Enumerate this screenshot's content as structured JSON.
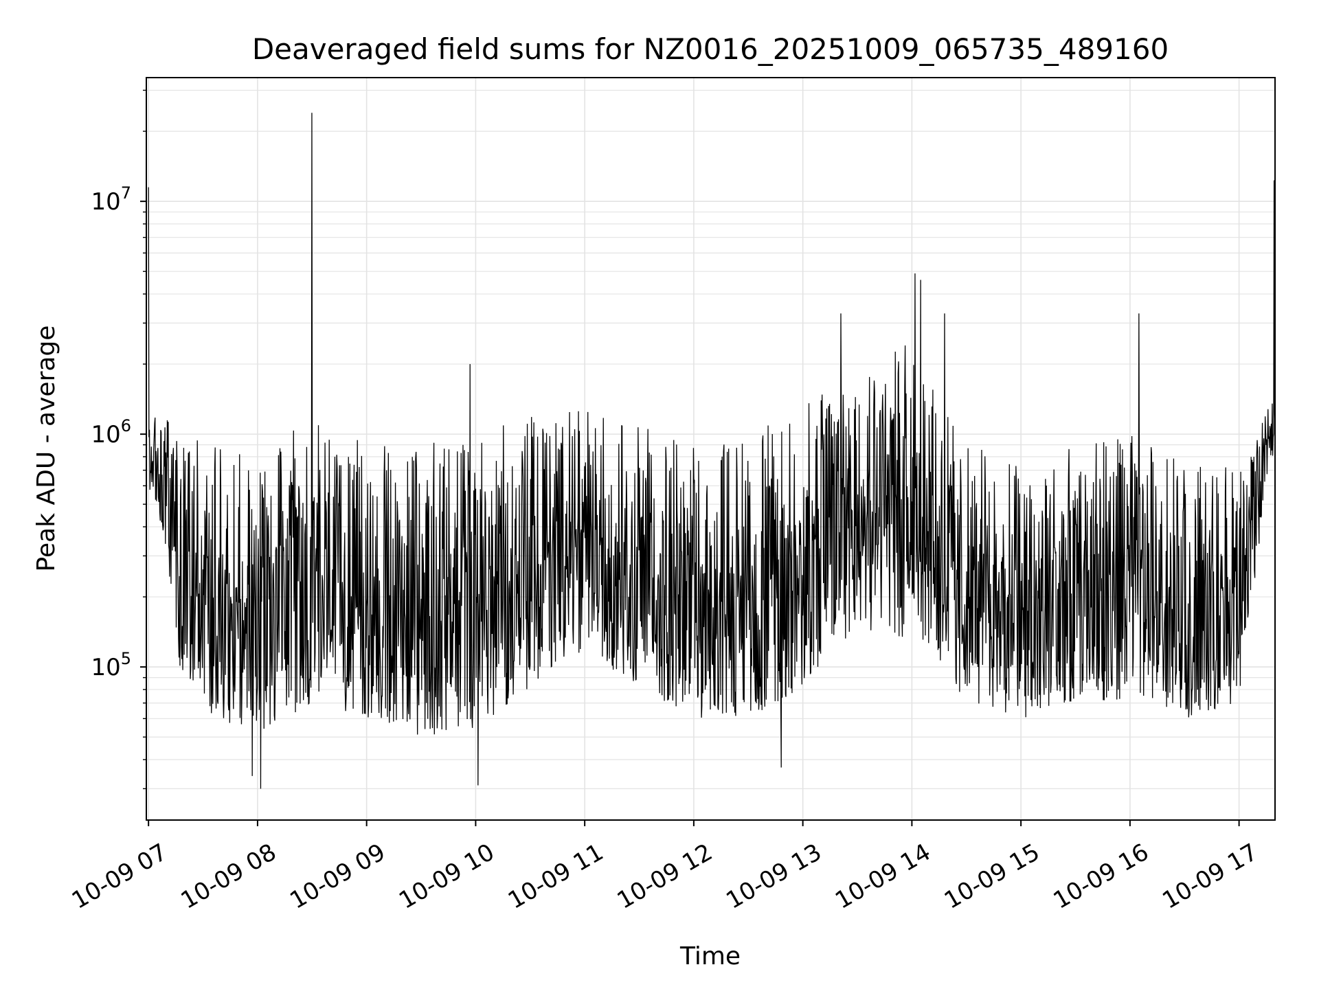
{
  "chart_data": {
    "type": "line",
    "title": "Deaveraged field sums for NZ0016_20251009_065735_489160",
    "xlabel": "Time",
    "ylabel": "Peak ADU - average",
    "yscale": "log",
    "ylim": [
      22000,
      34000000
    ],
    "xlim_hours": [
      6.98,
      17.33
    ],
    "grid": true,
    "x_tick_hours": [
      7,
      8,
      9,
      10,
      11,
      12,
      13,
      14,
      15,
      16,
      17
    ],
    "x_tick_labels": [
      "10-09 07",
      "10-09 08",
      "10-09 09",
      "10-09 10",
      "10-09 11",
      "10-09 12",
      "10-09 13",
      "10-09 14",
      "10-09 15",
      "10-09 16",
      "10-09 17"
    ],
    "y_major_ticks": [
      {
        "value": 100000,
        "base": "10",
        "exp": "5"
      },
      {
        "value": 1000000,
        "base": "10",
        "exp": "6"
      },
      {
        "value": 10000000,
        "base": "10",
        "exp": "7"
      }
    ],
    "series": [
      {
        "name": "field sums",
        "color": "#000000",
        "description": "dense noisy trace sampled ~every 15 s; envelope values below",
        "envelope": [
          {
            "hour": 7.0,
            "low": 600000,
            "median": 900000,
            "high": 1200000
          },
          {
            "hour": 7.15,
            "low": 350000,
            "median": 700000,
            "high": 1200000
          },
          {
            "hour": 7.3,
            "low": 90000,
            "median": 300000,
            "high": 1100000
          },
          {
            "hour": 7.6,
            "low": 60000,
            "median": 200000,
            "high": 900000
          },
          {
            "hour": 8.0,
            "low": 50000,
            "median": 170000,
            "high": 800000
          },
          {
            "hour": 8.5,
            "low": 70000,
            "median": 250000,
            "high": 1200000
          },
          {
            "hour": 9.0,
            "low": 60000,
            "median": 180000,
            "high": 900000
          },
          {
            "hour": 9.5,
            "low": 50000,
            "median": 160000,
            "high": 900000
          },
          {
            "hour": 10.0,
            "low": 55000,
            "median": 180000,
            "high": 1000000
          },
          {
            "hour": 10.5,
            "low": 80000,
            "median": 250000,
            "high": 1200000
          },
          {
            "hour": 11.0,
            "low": 120000,
            "median": 350000,
            "high": 1300000
          },
          {
            "hour": 11.5,
            "low": 80000,
            "median": 250000,
            "high": 1100000
          },
          {
            "hour": 12.0,
            "low": 60000,
            "median": 180000,
            "high": 900000
          },
          {
            "hour": 12.5,
            "low": 60000,
            "median": 200000,
            "high": 1000000
          },
          {
            "hour": 13.0,
            "low": 80000,
            "median": 300000,
            "high": 1300000
          },
          {
            "hour": 13.5,
            "low": 150000,
            "median": 600000,
            "high": 2200000
          },
          {
            "hour": 14.0,
            "low": 120000,
            "median": 500000,
            "high": 2500000
          },
          {
            "hour": 14.5,
            "low": 70000,
            "median": 200000,
            "high": 900000
          },
          {
            "hour": 15.0,
            "low": 60000,
            "median": 170000,
            "high": 800000
          },
          {
            "hour": 15.5,
            "low": 70000,
            "median": 200000,
            "high": 900000
          },
          {
            "hour": 16.0,
            "low": 70000,
            "median": 250000,
            "high": 1000000
          },
          {
            "hour": 16.5,
            "low": 60000,
            "median": 160000,
            "high": 800000
          },
          {
            "hour": 17.0,
            "low": 70000,
            "median": 180000,
            "high": 700000
          },
          {
            "hour": 17.15,
            "low": 250000,
            "median": 600000,
            "high": 900000
          },
          {
            "hour": 17.3,
            "low": 800000,
            "median": 1100000,
            "high": 1500000
          }
        ],
        "spikes": [
          {
            "hour": 7.0,
            "value": 11500000
          },
          {
            "hour": 8.5,
            "value": 24000000
          },
          {
            "hour": 9.95,
            "value": 2000000
          },
          {
            "hour": 13.35,
            "value": 3300000
          },
          {
            "hour": 14.03,
            "value": 4900000
          },
          {
            "hour": 14.08,
            "value": 4600000
          },
          {
            "hour": 14.3,
            "value": 3300000
          },
          {
            "hour": 16.08,
            "value": 3300000
          },
          {
            "hour": 17.32,
            "value": 12300000
          }
        ],
        "dips": [
          {
            "hour": 8.03,
            "value": 30000
          },
          {
            "hour": 10.02,
            "value": 31000
          },
          {
            "hour": 7.95,
            "value": 34000
          },
          {
            "hour": 12.8,
            "value": 37000
          }
        ]
      }
    ]
  }
}
